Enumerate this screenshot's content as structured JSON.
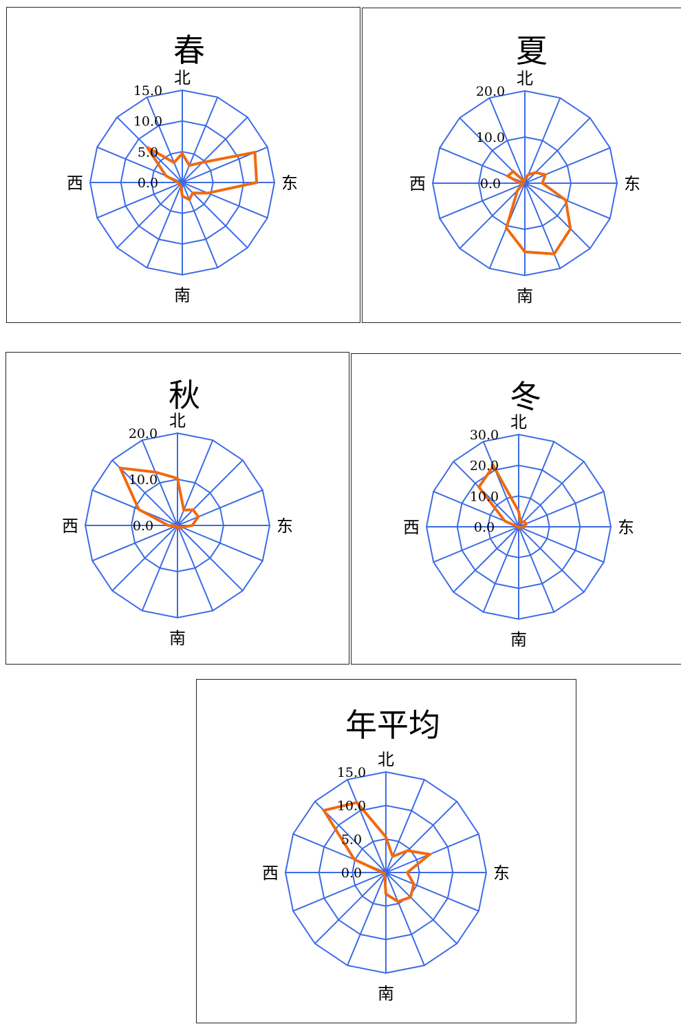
{
  "chart_data": [
    {
      "type": "radar",
      "title": "春",
      "directions": {
        "north": "北",
        "east": "东",
        "south": "南",
        "west": "西"
      },
      "rmax": 15,
      "ticks": [
        "0.0",
        "5.0",
        "10.0",
        "15.0"
      ],
      "values": [
        4.7,
        3.0,
        4.6,
        12.8,
        12.1,
        4.5,
        2.4,
        3.0,
        2.2,
        0.6,
        0.5,
        0.6,
        0.7,
        2.9,
        8.1,
        3.5
      ],
      "series_color": "#f06a10",
      "grid_color": "#3b6be6"
    },
    {
      "type": "radar",
      "title": "夏",
      "directions": {
        "north": "北",
        "east": "东",
        "south": "南",
        "west": "西"
      },
      "rmax": 20,
      "ticks": [
        "0.0",
        "10.0",
        "20.0"
      ],
      "values": [
        1.0,
        2.0,
        3.3,
        4.8,
        3.8,
        9.6,
        14.0,
        16.6,
        14.9,
        10.5,
        2.3,
        0.5,
        1.0,
        4.0,
        3.6,
        0.5
      ],
      "series_color": "#f06a10",
      "grid_color": "#3b6be6"
    },
    {
      "type": "radar",
      "title": "秋",
      "directions": {
        "north": "北",
        "east": "东",
        "south": "南",
        "west": "西"
      },
      "rmax": 20,
      "ticks": [
        "0.0",
        "10.0",
        "20.0"
      ],
      "values": [
        10.2,
        3.6,
        4.8,
        4.9,
        3.2,
        1.1,
        0.6,
        0.4,
        0.3,
        0.5,
        0.3,
        0.3,
        2.0,
        9.1,
        17.6,
        12.5
      ],
      "series_color": "#f06a10",
      "grid_color": "#3b6be6"
    },
    {
      "type": "radar",
      "title": "冬",
      "directions": {
        "north": "北",
        "east": "东",
        "south": "南",
        "west": "西"
      },
      "rmax": 30,
      "ticks": [
        "0.0",
        "10.0",
        "20.0",
        "30.0"
      ],
      "values": [
        5.0,
        1.6,
        2.4,
        2.7,
        1.9,
        0.5,
        0.3,
        0.3,
        0.2,
        0.1,
        0.1,
        0.2,
        0.3,
        4.9,
        18.3,
        21.4
      ],
      "series_color": "#f06a10",
      "grid_color": "#3b6be6"
    },
    {
      "type": "radar",
      "title": "年平均",
      "directions": {
        "north": "北",
        "east": "东",
        "south": "南",
        "west": "西"
      },
      "rmax": 15,
      "ticks": [
        "0.0",
        "5.0",
        "10.0",
        "15.0"
      ],
      "values": [
        5.3,
        2.6,
        4.6,
        7.1,
        3.2,
        4.5,
        5.2,
        4.7,
        3.2,
        0.5,
        0.4,
        0.3,
        0.5,
        5.1,
        13.1,
        11.3
      ],
      "series_color": "#f06a10",
      "grid_color": "#3b6be6"
    }
  ]
}
